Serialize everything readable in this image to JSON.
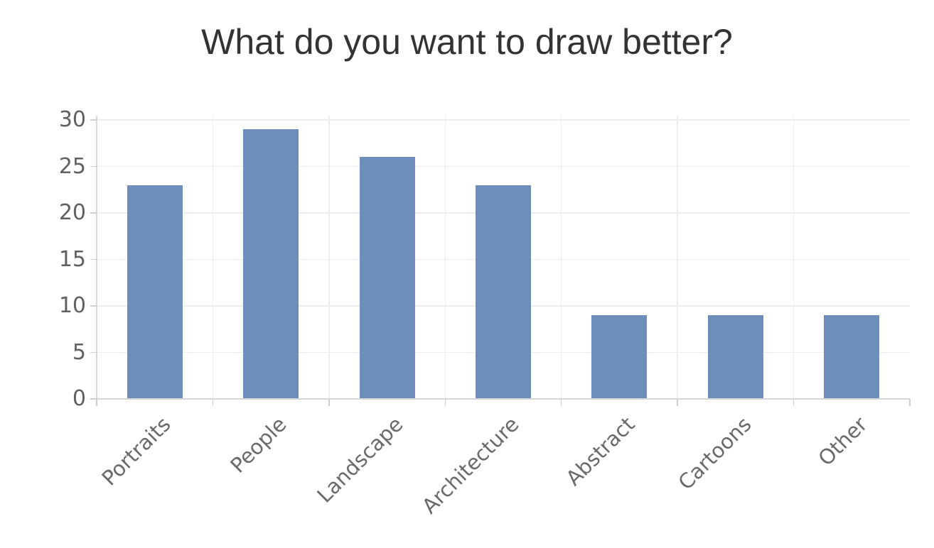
{
  "figure": {
    "background": "#ffffff"
  },
  "chart_data": {
    "type": "bar",
    "title": "What do you want to draw better?",
    "categories": [
      "Portraits",
      "People",
      "Landscape",
      "Architecture",
      "Abstract",
      "Cartoons",
      "Other"
    ],
    "values": [
      23,
      29,
      26,
      23,
      9,
      9,
      9
    ],
    "xlabel": "",
    "ylabel": "",
    "ylim": [
      0,
      30
    ],
    "yticks": [
      0,
      5,
      10,
      15,
      20,
      25,
      30
    ],
    "grid": true,
    "legend": "none",
    "x_tick_rotation_deg": 45,
    "bar_color": "#6d8eba",
    "colors": {
      "title_text": "#333333",
      "y_tick_text": "#606060",
      "x_tick_text": "#6a6a6a",
      "gridline": "#ededed",
      "axis_line": "#d6d6d6",
      "tick_mark": "#cfcfcf",
      "background": "#ffffff"
    }
  }
}
